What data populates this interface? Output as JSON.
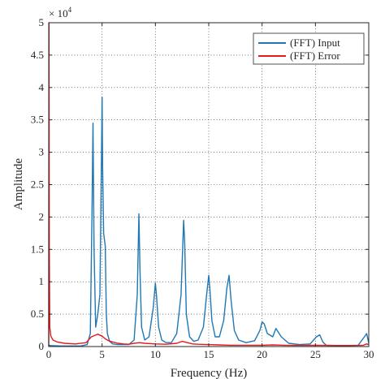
{
  "chart_data": {
    "type": "line",
    "xlabel": "Frequency (Hz)",
    "ylabel": "Amplitude",
    "xlim": [
      0,
      30
    ],
    "ylim": [
      0,
      50000
    ],
    "x_ticks": [
      0,
      5,
      10,
      15,
      20,
      25,
      30
    ],
    "y_ticks": [
      0,
      5000,
      10000,
      15000,
      20000,
      25000,
      30000,
      35000,
      40000,
      45000,
      50000
    ],
    "y_tick_labels": [
      "0",
      "0.5",
      "1",
      "1.5",
      "2",
      "2.5",
      "3",
      "3.5",
      "4",
      "4.5",
      "5"
    ],
    "y_exponent_base": "× 10",
    "y_exponent_power": "4",
    "grid": true,
    "grid_style": "dotted",
    "legend_position": "top-right",
    "colors": {
      "input": "#1f77b4",
      "error": "#e31a1c"
    },
    "series": [
      {
        "name": "(FFT) Input",
        "color": "#1f77b4",
        "x": [
          0,
          0.05,
          0.2,
          0.5,
          1.0,
          2.0,
          3.0,
          3.6,
          3.9,
          4.05,
          4.15,
          4.25,
          4.4,
          4.6,
          4.8,
          4.95,
          5.0,
          5.05,
          5.15,
          5.3,
          5.4,
          5.5,
          5.7,
          6.0,
          6.5,
          7.0,
          7.5,
          8.0,
          8.3,
          8.45,
          8.55,
          8.7,
          9.0,
          9.4,
          9.8,
          10.0,
          10.1,
          10.3,
          10.6,
          11.0,
          11.5,
          12.0,
          12.4,
          12.65,
          12.75,
          12.9,
          13.2,
          13.6,
          14.0,
          14.5,
          14.8,
          15.0,
          15.1,
          15.3,
          15.6,
          16.0,
          16.4,
          16.7,
          16.9,
          17.1,
          17.4,
          17.8,
          18.5,
          19.3,
          19.8,
          20.0,
          20.2,
          20.5,
          21.0,
          21.3,
          21.8,
          22.5,
          23.5,
          24.5,
          25.1,
          25.4,
          25.7,
          26.0,
          27.0,
          28.0,
          29.0,
          29.6,
          29.8,
          30.0
        ],
        "y": [
          0,
          200,
          150,
          120,
          100,
          90,
          90,
          300,
          2000,
          20000,
          34500,
          15000,
          3000,
          5000,
          8000,
          30000,
          38500,
          28000,
          17500,
          15500,
          5000,
          2000,
          800,
          400,
          300,
          300,
          300,
          1000,
          8000,
          20500,
          12000,
          3000,
          1000,
          1500,
          6000,
          9800,
          8000,
          3000,
          1000,
          600,
          600,
          2000,
          8000,
          19500,
          16000,
          5000,
          1500,
          800,
          1000,
          3000,
          8000,
          11000,
          9000,
          4000,
          1500,
          1500,
          4000,
          9000,
          11000,
          7000,
          2500,
          1000,
          600,
          900,
          2500,
          3800,
          3500,
          2000,
          1500,
          2800,
          1500,
          500,
          300,
          400,
          1500,
          1800,
          700,
          200,
          150,
          150,
          200,
          1500,
          2000,
          500
        ]
      },
      {
        "name": "(FFT) Error",
        "color": "#e31a1c",
        "x": [
          0,
          0.02,
          0.05,
          0.1,
          0.2,
          0.4,
          0.8,
          1.5,
          2.5,
          3.5,
          4.0,
          4.3,
          4.6,
          5.0,
          5.3,
          5.6,
          6.0,
          6.5,
          7.0,
          7.5,
          8.0,
          8.5,
          9.0,
          10.0,
          11.0,
          12.0,
          12.5,
          13.0,
          13.5,
          14.0,
          15.0,
          16.0,
          17.0,
          18.0,
          19.0,
          20.0,
          21.0,
          22.0,
          23.0,
          24.0,
          25.0,
          26.0,
          27.0,
          28.0,
          29.0,
          29.5,
          29.8,
          30.0
        ],
        "y": [
          0,
          50000,
          15000,
          3000,
          1600,
          1000,
          700,
          500,
          400,
          600,
          1500,
          1700,
          1900,
          1600,
          1200,
          900,
          700,
          500,
          400,
          350,
          500,
          600,
          500,
          400,
          350,
          500,
          800,
          600,
          400,
          350,
          300,
          250,
          200,
          200,
          200,
          200,
          250,
          200,
          180,
          180,
          200,
          180,
          160,
          160,
          180,
          200,
          400,
          300
        ]
      }
    ]
  }
}
